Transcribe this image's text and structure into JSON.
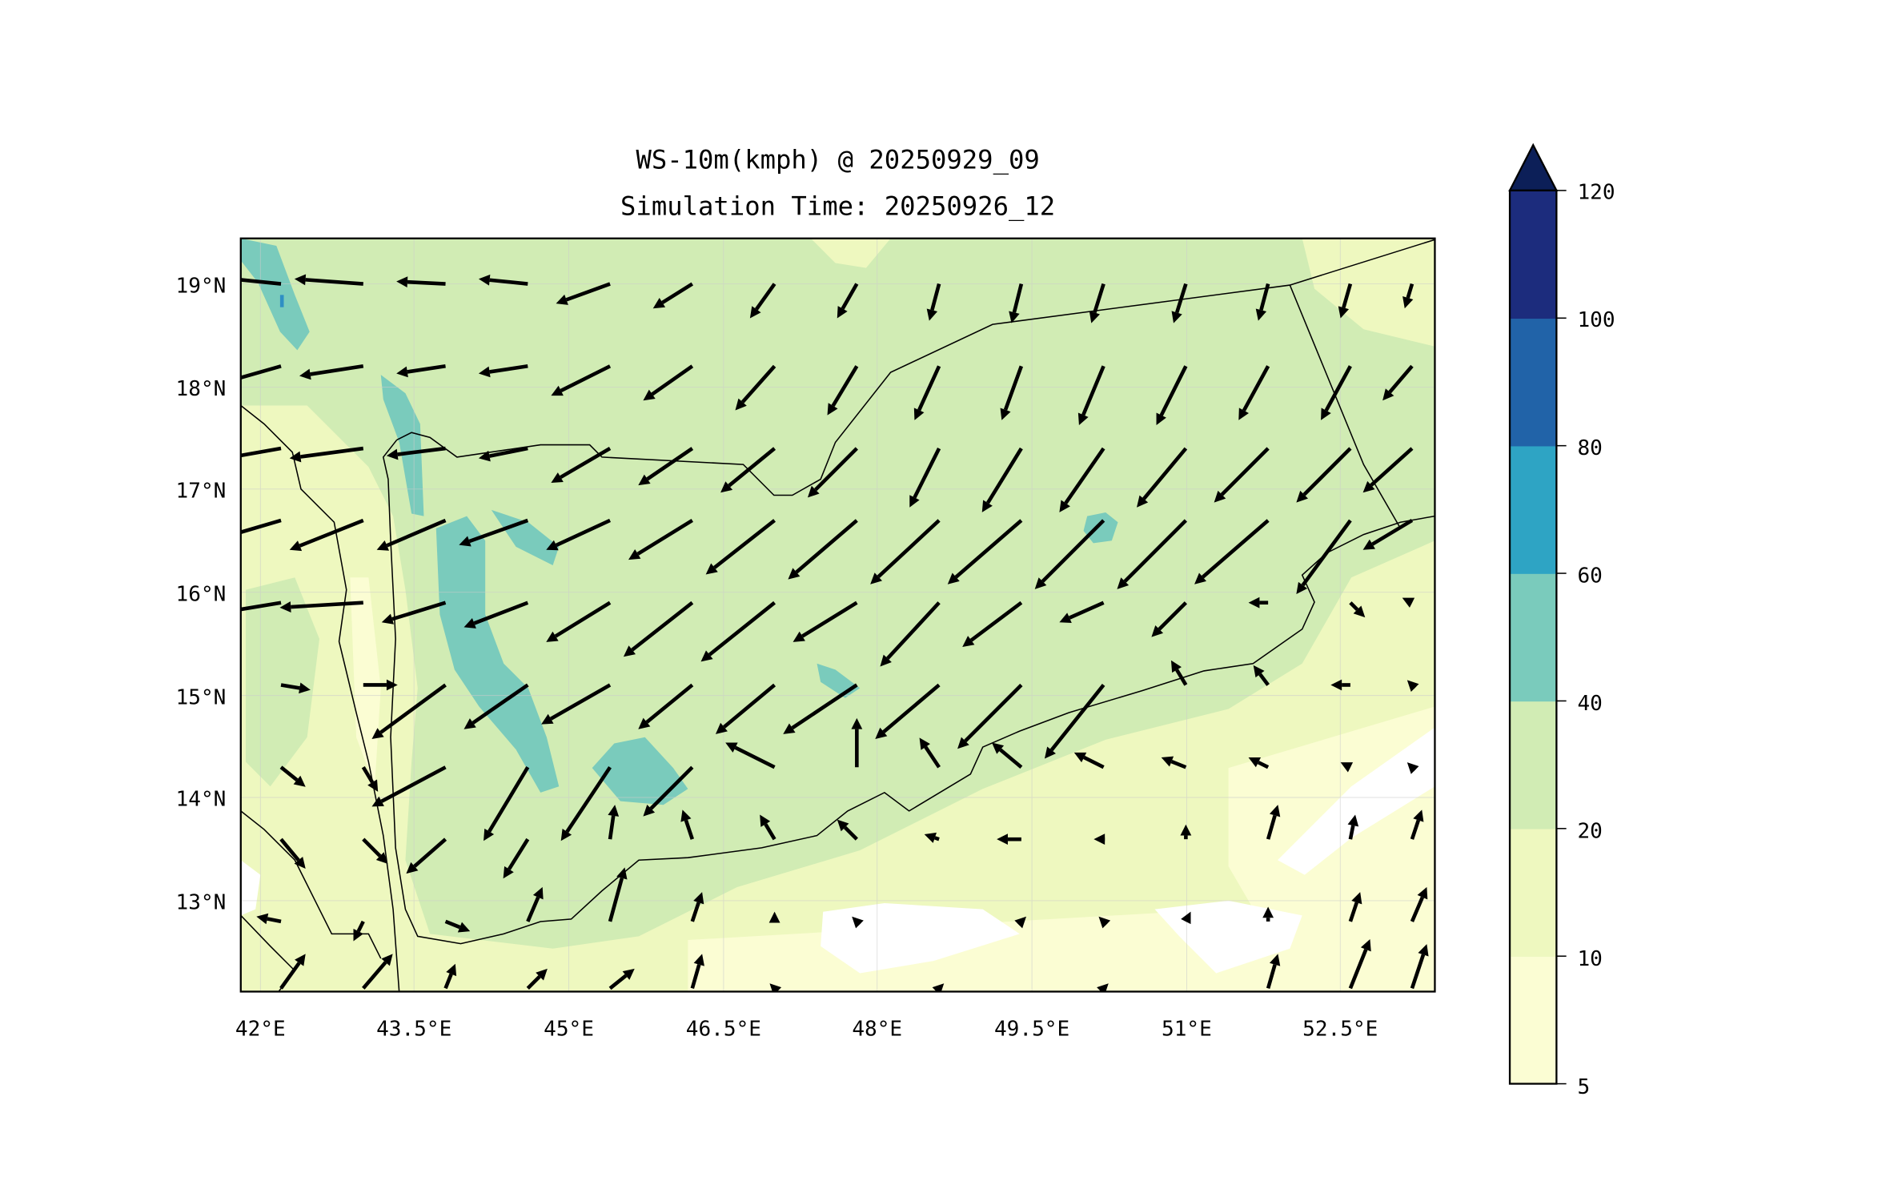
{
  "title_line1": "WS-10m(kmph) @ 20250929_09",
  "title_line2": "Simulation Time: 20250926_12",
  "chart_data": {
    "type": "map-contour-quiver",
    "variable": "WS-10m(kmph)",
    "valid_time": "20250929_09",
    "simulation_time": "20250926_12",
    "lon_range": [
      41.81,
      53.42
    ],
    "lat_range": [
      12.12,
      19.44
    ],
    "x_ticks": [
      {
        "value": 42,
        "label": "42°E"
      },
      {
        "value": 43.5,
        "label": "43.5°E"
      },
      {
        "value": 45,
        "label": "45°E"
      },
      {
        "value": 46.5,
        "label": "46.5°E"
      },
      {
        "value": 48,
        "label": "48°E"
      },
      {
        "value": 49.5,
        "label": "49.5°E"
      },
      {
        "value": 51,
        "label": "51°E"
      },
      {
        "value": 52.5,
        "label": "52.5°E"
      }
    ],
    "y_ticks": [
      {
        "value": 19,
        "label": "19°N"
      },
      {
        "value": 18,
        "label": "18°N"
      },
      {
        "value": 17,
        "label": "17°N"
      },
      {
        "value": 16,
        "label": "16°N"
      },
      {
        "value": 15,
        "label": "15°N"
      },
      {
        "value": 14,
        "label": "14°N"
      },
      {
        "value": 13,
        "label": "13°N"
      }
    ],
    "grid": true,
    "colorbar": {
      "levels": [
        5,
        10,
        20,
        40,
        60,
        80,
        100,
        120
      ],
      "labels": [
        "5",
        "10",
        "20",
        "40",
        "60",
        "80",
        "100",
        "120"
      ],
      "colors": [
        "#fbfdd3",
        "#eef8bf",
        "#d1ecb4",
        "#7acbbc",
        "#2ea4c4",
        "#2163a8",
        "#1c2c7d"
      ],
      "extend_color": "#0c1f58",
      "extend": "max",
      "placement": "right"
    },
    "wind_grid": {
      "lons": [
        42.2,
        43.0,
        43.8,
        44.6,
        45.4,
        46.2,
        47.0,
        47.8,
        48.6,
        49.4,
        50.2,
        51.0,
        51.8,
        52.6,
        53.2
      ],
      "lats": [
        19.0,
        18.2,
        17.4,
        16.7,
        15.9,
        15.1,
        14.3,
        13.6,
        12.8,
        12.15
      ],
      "uv_kmph": [
        [
          [
            -30,
            3
          ],
          [
            -28,
            2
          ],
          [
            -20,
            1
          ],
          [
            -20,
            2
          ],
          [
            -22,
            -8
          ],
          [
            -16,
            -10
          ],
          [
            -10,
            -14
          ],
          [
            -8,
            -14
          ],
          [
            -4,
            -15
          ],
          [
            -4,
            -16
          ],
          [
            -5,
            -16
          ],
          [
            -5,
            -16
          ],
          [
            -4,
            -15
          ],
          [
            -4,
            -14
          ],
          [
            -3,
            -10
          ]
        ],
        [
          [
            -28,
            -8
          ],
          [
            -26,
            -4
          ],
          [
            -20,
            -3
          ],
          [
            -20,
            -3
          ],
          [
            -24,
            -12
          ],
          [
            -20,
            -14
          ],
          [
            -16,
            -18
          ],
          [
            -12,
            -20
          ],
          [
            -10,
            -22
          ],
          [
            -8,
            -22
          ],
          [
            -10,
            -24
          ],
          [
            -12,
            -24
          ],
          [
            -12,
            -22
          ],
          [
            -12,
            -22
          ],
          [
            -12,
            -14
          ]
        ],
        [
          [
            -34,
            -6
          ],
          [
            -30,
            -4
          ],
          [
            -24,
            -3
          ],
          [
            -20,
            -4
          ],
          [
            -24,
            -14
          ],
          [
            -22,
            -15
          ],
          [
            -22,
            -18
          ],
          [
            -20,
            -20
          ],
          [
            -12,
            -24
          ],
          [
            -16,
            -26
          ],
          [
            -18,
            -26
          ],
          [
            -20,
            -24
          ],
          [
            -22,
            -22
          ],
          [
            -22,
            -22
          ],
          [
            -20,
            -18
          ]
        ],
        [
          [
            -34,
            -10
          ],
          [
            -30,
            -12
          ],
          [
            -28,
            -12
          ],
          [
            -28,
            -10
          ],
          [
            -26,
            -12
          ],
          [
            -26,
            -16
          ],
          [
            -28,
            -22
          ],
          [
            -28,
            -24
          ],
          [
            -28,
            -26
          ],
          [
            -30,
            -26
          ],
          [
            -28,
            -28
          ],
          [
            -28,
            -28
          ],
          [
            -30,
            -26
          ],
          [
            -22,
            -30
          ],
          [
            -20,
            -12
          ]
        ],
        [
          [
            -36,
            -6
          ],
          [
            -34,
            -2
          ],
          [
            -26,
            -8
          ],
          [
            -26,
            -10
          ],
          [
            -26,
            -16
          ],
          [
            -28,
            -22
          ],
          [
            -30,
            -24
          ],
          [
            -26,
            -16
          ],
          [
            -24,
            -26
          ],
          [
            -24,
            -18
          ],
          [
            -18,
            -8
          ],
          [
            -14,
            -14
          ],
          [
            -8,
            0
          ],
          [
            6,
            -6
          ],
          [
            -4,
            2
          ]
        ],
        [
          [
            12,
            -2
          ],
          [
            14,
            0
          ],
          [
            -30,
            -22
          ],
          [
            -26,
            -18
          ],
          [
            -28,
            -16
          ],
          [
            -22,
            -18
          ],
          [
            -24,
            -20
          ],
          [
            -30,
            -20
          ],
          [
            -26,
            -22
          ],
          [
            -26,
            -26
          ],
          [
            -24,
            -30
          ],
          [
            -6,
            10
          ],
          [
            -6,
            8
          ],
          [
            -8,
            0
          ],
          [
            -2,
            2
          ]
        ],
        [
          [
            10,
            -8
          ],
          [
            6,
            -10
          ],
          [
            -30,
            -16
          ],
          [
            -18,
            -30
          ],
          [
            -20,
            -30
          ],
          [
            -20,
            -20
          ],
          [
            -20,
            10
          ],
          [
            0,
            20
          ],
          [
            -8,
            12
          ],
          [
            -12,
            10
          ],
          [
            -12,
            6
          ],
          [
            -10,
            4
          ],
          [
            -8,
            4
          ],
          [
            -4,
            2
          ],
          [
            -2,
            2
          ]
        ],
        [
          [
            10,
            -12
          ],
          [
            10,
            -10
          ],
          [
            -16,
            -14
          ],
          [
            -10,
            -16
          ],
          [
            2,
            14
          ],
          [
            -4,
            12
          ],
          [
            -6,
            10
          ],
          [
            -8,
            8
          ],
          [
            -6,
            2
          ],
          [
            -10,
            0
          ],
          [
            -4,
            0
          ],
          [
            0,
            6
          ],
          [
            4,
            14
          ],
          [
            2,
            10
          ],
          [
            4,
            12
          ]
        ],
        [
          [
            -10,
            2
          ],
          [
            -4,
            -8
          ],
          [
            10,
            -4
          ],
          [
            6,
            14
          ],
          [
            6,
            22
          ],
          [
            4,
            12
          ],
          [
            0,
            4
          ],
          [
            -2,
            2
          ],
          [
            0,
            0
          ],
          [
            2,
            2
          ],
          [
            -2,
            2
          ],
          [
            2,
            4
          ],
          [
            0,
            6
          ],
          [
            4,
            12
          ],
          [
            6,
            14
          ]
        ],
        [
          [
            10,
            14
          ],
          [
            12,
            14
          ],
          [
            4,
            10
          ],
          [
            8,
            8
          ],
          [
            10,
            8
          ],
          [
            4,
            14
          ],
          [
            -2,
            2
          ],
          [
            0,
            0
          ],
          [
            2,
            2
          ],
          [
            0,
            0
          ],
          [
            2,
            2
          ],
          [
            0,
            0
          ],
          [
            4,
            14
          ],
          [
            8,
            20
          ],
          [
            6,
            18
          ]
        ]
      ]
    }
  }
}
